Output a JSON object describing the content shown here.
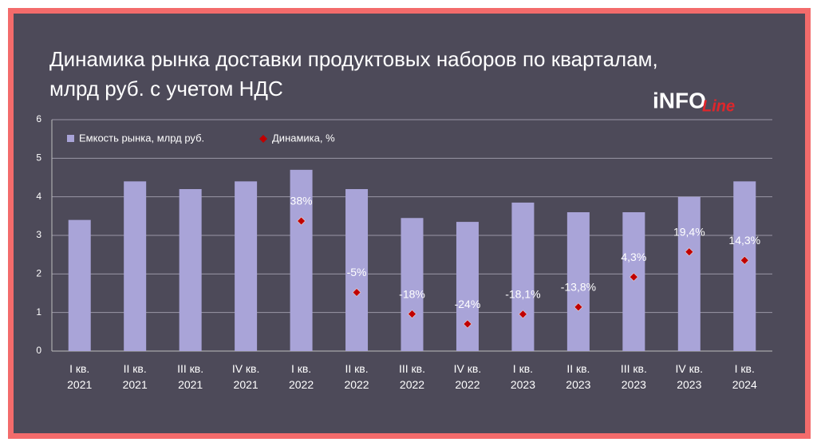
{
  "chart_data": {
    "type": "bar",
    "title": "Динамика рынка доставки продуктовых наборов по кварталам,",
    "subtitle": "млрд руб. с учетом НДС",
    "logo": [
      "iNFO",
      "Line"
    ],
    "categories": [
      "I кв.\n2021",
      "II кв.\n2021",
      "III кв.\n2021",
      "IV кв.\n2021",
      "I кв.\n2022",
      "II кв.\n2022",
      "III кв.\n2022",
      "IV кв.\n2022",
      "I кв.\n2023",
      "II кв.\n2023",
      "III кв.\n2023",
      "IV кв.\n2023",
      "I кв.\n2024"
    ],
    "series": [
      {
        "name": "Емкость рынка, млрд руб.",
        "color": "#a9a4d8",
        "values": [
          3.4,
          4.4,
          4.2,
          4.4,
          4.7,
          4.2,
          3.45,
          3.35,
          3.85,
          3.6,
          3.6,
          4.0,
          4.4
        ]
      },
      {
        "name": "Динамика, %",
        "color": "#c00000",
        "axis": "y2",
        "values": [
          null,
          null,
          null,
          null,
          38,
          -5,
          -18,
          -24,
          -18.1,
          -13.8,
          4.3,
          19.4,
          14.3
        ],
        "value_labels": [
          null,
          null,
          null,
          null,
          "38%",
          "-5%",
          "-18%",
          "-24%",
          "-18,1%",
          "-13,8%",
          "4,3%",
          "19,4%",
          "14,3%"
        ]
      }
    ],
    "ylim": [
      0,
      6
    ],
    "yticks": [
      0,
      1,
      2,
      3,
      4,
      5,
      6
    ],
    "y2lim": [
      -40.3,
      99
    ],
    "grid": true
  }
}
